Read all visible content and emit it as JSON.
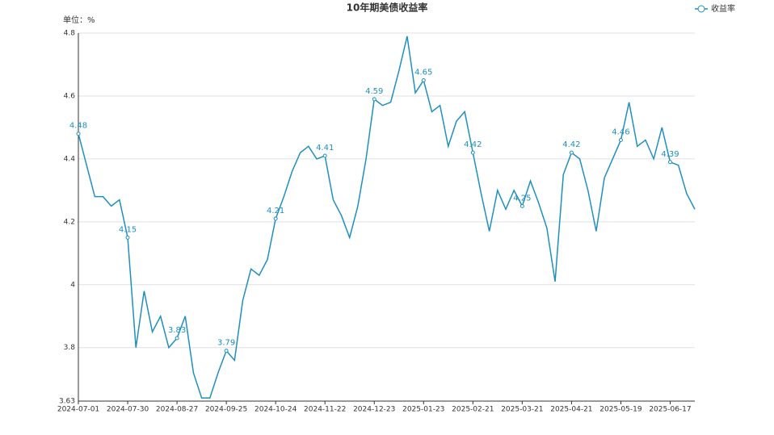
{
  "chart_data": {
    "type": "line",
    "title": "10年期美债收益率",
    "y_unit_label": "单位：%",
    "categories": [
      "2024-07-01",
      null,
      null,
      null,
      null,
      null,
      "2024-07-30",
      null,
      null,
      null,
      null,
      null,
      "2024-08-27",
      null,
      null,
      null,
      null,
      null,
      "2024-09-25",
      null,
      null,
      null,
      null,
      null,
      "2024-10-24",
      null,
      null,
      null,
      null,
      null,
      "2024-11-22",
      null,
      null,
      null,
      null,
      null,
      "2024-12-23",
      null,
      null,
      null,
      null,
      null,
      "2025-01-23",
      null,
      null,
      null,
      null,
      null,
      "2025-02-21",
      null,
      null,
      null,
      null,
      null,
      "2025-03-21",
      null,
      null,
      null,
      null,
      null,
      "2025-04-21",
      null,
      null,
      null,
      null,
      null,
      "2025-05-19",
      null,
      null,
      null,
      null,
      null,
      "2025-06-17",
      null,
      null,
      null
    ],
    "series": [
      {
        "name": "收益率",
        "color": "#1f8fc0",
        "values": [
          4.48,
          4.38,
          4.28,
          4.28,
          4.25,
          4.27,
          4.15,
          3.8,
          3.98,
          3.85,
          3.9,
          3.8,
          3.83,
          3.9,
          3.72,
          3.64,
          3.64,
          3.72,
          3.79,
          3.76,
          3.95,
          4.05,
          4.03,
          4.08,
          4.21,
          4.28,
          4.36,
          4.42,
          4.44,
          4.4,
          4.41,
          4.27,
          4.22,
          4.15,
          4.25,
          4.4,
          4.59,
          4.57,
          4.58,
          4.68,
          4.79,
          4.61,
          4.65,
          4.55,
          4.57,
          4.44,
          4.52,
          4.55,
          4.42,
          4.29,
          4.17,
          4.3,
          4.24,
          4.3,
          4.25,
          4.33,
          4.26,
          4.18,
          4.01,
          4.35,
          4.42,
          4.4,
          4.3,
          4.17,
          4.34,
          4.4,
          4.46,
          4.58,
          4.44,
          4.46,
          4.4,
          4.5,
          4.39,
          4.38,
          4.29,
          4.24
        ],
        "value_labels": [
          "4.48",
          null,
          null,
          null,
          null,
          null,
          "4.15",
          null,
          null,
          null,
          null,
          null,
          "3.83",
          null,
          null,
          null,
          null,
          null,
          "3.79",
          null,
          null,
          null,
          null,
          null,
          "4.21",
          null,
          null,
          null,
          null,
          null,
          "4.41",
          null,
          null,
          null,
          null,
          null,
          "4.59",
          null,
          null,
          null,
          null,
          null,
          "4.65",
          null,
          null,
          null,
          null,
          null,
          "4.42",
          null,
          null,
          null,
          null,
          null,
          "4.25",
          null,
          null,
          null,
          null,
          null,
          "4.42",
          null,
          null,
          null,
          null,
          null,
          "4.46",
          null,
          null,
          null,
          null,
          null,
          "4.39",
          null,
          null,
          null
        ]
      }
    ],
    "ylim": [
      3.63,
      4.8
    ],
    "yticks": [
      3.63,
      3.8,
      4,
      4.2,
      4.4,
      4.6,
      4.8
    ],
    "grid": true,
    "legend": "top-right"
  }
}
